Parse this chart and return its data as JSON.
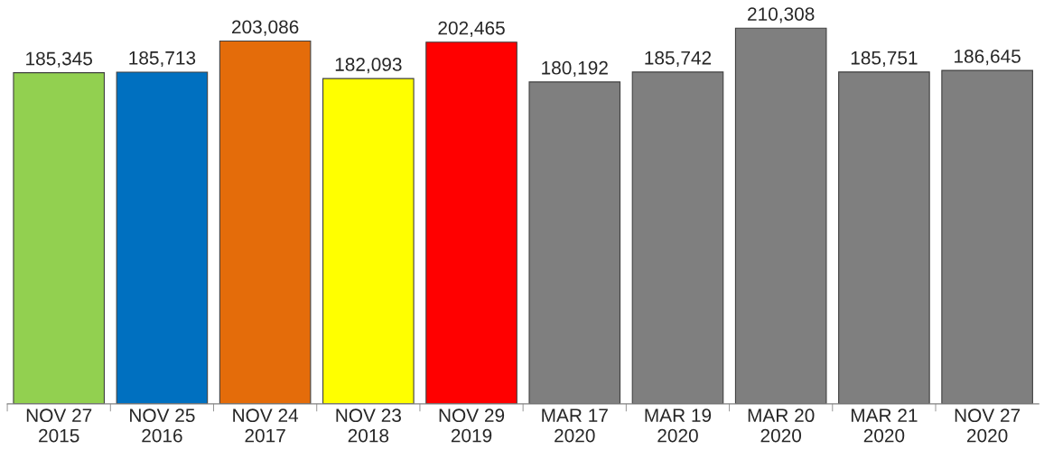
{
  "chart_data": {
    "type": "bar",
    "categories": [
      "NOV 27\n2015",
      "NOV 25\n2016",
      "NOV 24\n2017",
      "NOV 23\n2018",
      "NOV 29\n2019",
      "MAR 17\n2020",
      "MAR 19\n2020",
      "MAR 20\n2020",
      "MAR 21\n2020",
      "NOV 27\n2020"
    ],
    "values": [
      185345,
      185713,
      203086,
      182093,
      202465,
      180192,
      185742,
      210308,
      185751,
      186645
    ],
    "colors": [
      "#92d050",
      "#0070c0",
      "#e46c0a",
      "#ffff00",
      "#ff0000",
      "#7f7f7f",
      "#7f7f7f",
      "#7f7f7f",
      "#7f7f7f",
      "#7f7f7f"
    ],
    "value_labels": [
      "185,345",
      "185,713",
      "203,086",
      "182,093",
      "202,465",
      "180,192",
      "185,742",
      "210,308",
      "185,751",
      "186,645"
    ],
    "tick_labels": "x",
    "grid": false,
    "legend": false
  }
}
